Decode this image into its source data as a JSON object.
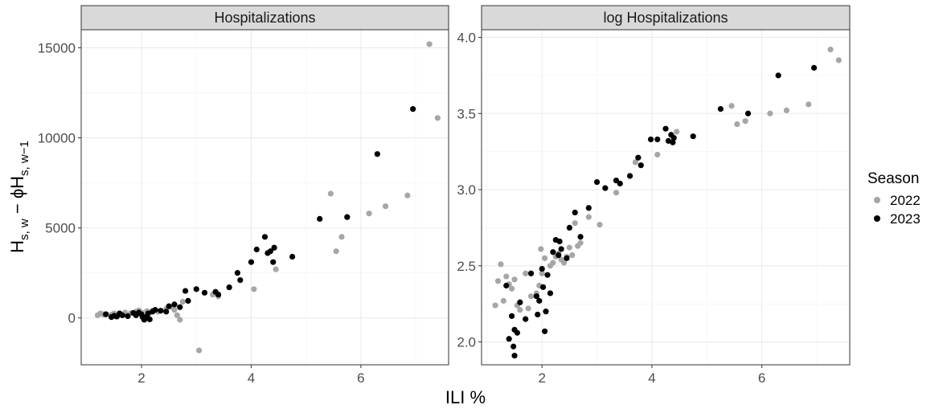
{
  "chart_data": [
    {
      "type": "scatter",
      "title": "Hospitalizations",
      "xlabel": "ILI %",
      "ylabel": "H_{s, w} − ϕH_{s, w−1}",
      "xlim": [
        0.9,
        7.6
      ],
      "ylim": [
        -2600,
        16000
      ],
      "xticks": [
        "2",
        "4",
        "6"
      ],
      "yticks": [
        "0",
        "5000",
        "10000",
        "15000"
      ],
      "grid": true,
      "series": [
        {
          "name": "2022",
          "color": "#a6a6a6",
          "points": [
            [
              1.2,
              150
            ],
            [
              1.25,
              250
            ],
            [
              1.3,
              200
            ],
            [
              1.35,
              220
            ],
            [
              1.45,
              180
            ],
            [
              1.5,
              250
            ],
            [
              1.6,
              200
            ],
            [
              1.7,
              300
            ],
            [
              1.8,
              260
            ],
            [
              1.9,
              350
            ],
            [
              1.95,
              420
            ],
            [
              2.0,
              300
            ],
            [
              2.1,
              380
            ],
            [
              2.2,
              400
            ],
            [
              2.3,
              350
            ],
            [
              2.45,
              500
            ],
            [
              2.55,
              600
            ],
            [
              2.6,
              450
            ],
            [
              2.65,
              150
            ],
            [
              2.7,
              -100
            ],
            [
              2.75,
              900
            ],
            [
              3.05,
              -1800
            ],
            [
              3.3,
              1300
            ],
            [
              3.4,
              1200
            ],
            [
              4.05,
              1600
            ],
            [
              4.45,
              2700
            ],
            [
              5.45,
              6900
            ],
            [
              5.55,
              3700
            ],
            [
              5.65,
              4500
            ],
            [
              5.75,
              5600
            ],
            [
              6.15,
              5800
            ],
            [
              6.45,
              6200
            ],
            [
              6.85,
              6800
            ],
            [
              7.25,
              15200
            ],
            [
              7.4,
              11100
            ]
          ]
        },
        {
          "name": "2023",
          "color": "#000000",
          "points": [
            [
              1.35,
              200
            ],
            [
              1.45,
              50
            ],
            [
              1.5,
              120
            ],
            [
              1.55,
              80
            ],
            [
              1.6,
              250
            ],
            [
              1.65,
              150
            ],
            [
              1.75,
              100
            ],
            [
              1.85,
              280
            ],
            [
              1.9,
              150
            ],
            [
              1.95,
              300
            ],
            [
              2.0,
              200
            ],
            [
              2.02,
              50
            ],
            [
              2.05,
              -100
            ],
            [
              2.1,
              100
            ],
            [
              2.12,
              250
            ],
            [
              2.15,
              -80
            ],
            [
              2.2,
              350
            ],
            [
              2.25,
              450
            ],
            [
              2.35,
              400
            ],
            [
              2.45,
              350
            ],
            [
              2.5,
              650
            ],
            [
              2.6,
              750
            ],
            [
              2.7,
              600
            ],
            [
              2.8,
              1500
            ],
            [
              2.85,
              950
            ],
            [
              3.0,
              1600
            ],
            [
              3.15,
              1400
            ],
            [
              3.35,
              1450
            ],
            [
              3.4,
              1300
            ],
            [
              3.6,
              1700
            ],
            [
              3.75,
              2500
            ],
            [
              3.8,
              2100
            ],
            [
              4.0,
              3100
            ],
            [
              4.1,
              3800
            ],
            [
              4.25,
              4500
            ],
            [
              4.3,
              3600
            ],
            [
              4.35,
              3700
            ],
            [
              4.4,
              3100
            ],
            [
              4.42,
              3900
            ],
            [
              4.75,
              3400
            ],
            [
              5.25,
              5500
            ],
            [
              5.75,
              5600
            ],
            [
              6.3,
              9100
            ],
            [
              6.95,
              11600
            ]
          ]
        }
      ]
    },
    {
      "type": "scatter",
      "title": "log Hospitalizations",
      "xlabel": "ILI %",
      "ylabel": "",
      "xlim": [
        0.9,
        7.6
      ],
      "ylim": [
        1.85,
        4.05
      ],
      "xticks": [
        "2",
        "4",
        "6"
      ],
      "yticks": [
        "2.0",
        "2.5",
        "3.0",
        "3.5",
        "4.0"
      ],
      "grid": true,
      "series": [
        {
          "name": "2022",
          "color": "#a6a6a6",
          "points": [
            [
              1.15,
              2.24
            ],
            [
              1.2,
              2.4
            ],
            [
              1.25,
              2.51
            ],
            [
              1.3,
              2.27
            ],
            [
              1.35,
              2.43
            ],
            [
              1.4,
              2.38
            ],
            [
              1.45,
              2.35
            ],
            [
              1.5,
              2.41
            ],
            [
              1.55,
              2.24
            ],
            [
              1.6,
              2.21
            ],
            [
              1.7,
              2.45
            ],
            [
              1.75,
              2.22
            ],
            [
              1.8,
              2.3
            ],
            [
              1.9,
              2.32
            ],
            [
              1.95,
              2.37
            ],
            [
              1.98,
              2.61
            ],
            [
              2.0,
              2.45
            ],
            [
              2.05,
              2.55
            ],
            [
              2.15,
              2.5
            ],
            [
              2.2,
              2.52
            ],
            [
              2.25,
              2.56
            ],
            [
              2.3,
              2.58
            ],
            [
              2.35,
              2.54
            ],
            [
              2.4,
              2.52
            ],
            [
              2.45,
              2.56
            ],
            [
              2.5,
              2.62
            ],
            [
              2.55,
              2.57
            ],
            [
              2.6,
              2.78
            ],
            [
              2.65,
              2.63
            ],
            [
              2.7,
              2.65
            ],
            [
              2.85,
              2.82
            ],
            [
              3.05,
              2.77
            ],
            [
              3.35,
              2.98
            ],
            [
              3.7,
              3.18
            ],
            [
              4.1,
              3.23
            ],
            [
              4.45,
              3.38
            ],
            [
              5.45,
              3.55
            ],
            [
              5.55,
              3.43
            ],
            [
              5.7,
              3.45
            ],
            [
              6.15,
              3.5
            ],
            [
              6.45,
              3.52
            ],
            [
              6.85,
              3.56
            ],
            [
              7.25,
              3.92
            ],
            [
              7.4,
              3.85
            ]
          ]
        },
        {
          "name": "2023",
          "color": "#000000",
          "points": [
            [
              1.35,
              2.37
            ],
            [
              1.4,
              2.02
            ],
            [
              1.45,
              2.17
            ],
            [
              1.48,
              1.97
            ],
            [
              1.5,
              2.08
            ],
            [
              1.5,
              1.91
            ],
            [
              1.55,
              2.06
            ],
            [
              1.6,
              2.26
            ],
            [
              1.7,
              2.15
            ],
            [
              1.8,
              2.45
            ],
            [
              1.9,
              2.3
            ],
            [
              1.92,
              2.18
            ],
            [
              1.95,
              2.27
            ],
            [
              2.0,
              2.48
            ],
            [
              2.02,
              2.36
            ],
            [
              2.05,
              2.07
            ],
            [
              2.07,
              2.2
            ],
            [
              2.1,
              2.44
            ],
            [
              2.15,
              2.32
            ],
            [
              2.2,
              2.59
            ],
            [
              2.25,
              2.67
            ],
            [
              2.3,
              2.57
            ],
            [
              2.32,
              2.66
            ],
            [
              2.35,
              2.61
            ],
            [
              2.45,
              2.55
            ],
            [
              2.5,
              2.75
            ],
            [
              2.6,
              2.85
            ],
            [
              2.7,
              2.69
            ],
            [
              2.85,
              2.88
            ],
            [
              3.0,
              3.05
            ],
            [
              3.15,
              3.01
            ],
            [
              3.35,
              3.06
            ],
            [
              3.42,
              3.04
            ],
            [
              3.6,
              3.09
            ],
            [
              3.75,
              3.21
            ],
            [
              3.8,
              3.16
            ],
            [
              3.98,
              3.33
            ],
            [
              4.1,
              3.33
            ],
            [
              4.25,
              3.4
            ],
            [
              4.3,
              3.32
            ],
            [
              4.35,
              3.36
            ],
            [
              4.38,
              3.31
            ],
            [
              4.4,
              3.34
            ],
            [
              4.75,
              3.35
            ],
            [
              5.25,
              3.53
            ],
            [
              5.75,
              3.5
            ],
            [
              6.3,
              3.75
            ],
            [
              6.95,
              3.8
            ]
          ]
        }
      ]
    }
  ],
  "legend": {
    "title": "Season",
    "items": [
      {
        "label": "2022",
        "color": "#a6a6a6"
      },
      {
        "label": "2023",
        "color": "#000000"
      }
    ]
  },
  "axis_titles": {
    "x": "ILI %",
    "y_main": "H",
    "y_sub1": "s, w",
    "y_mid": " − ϕH",
    "y_sub2": "s, w−1"
  }
}
